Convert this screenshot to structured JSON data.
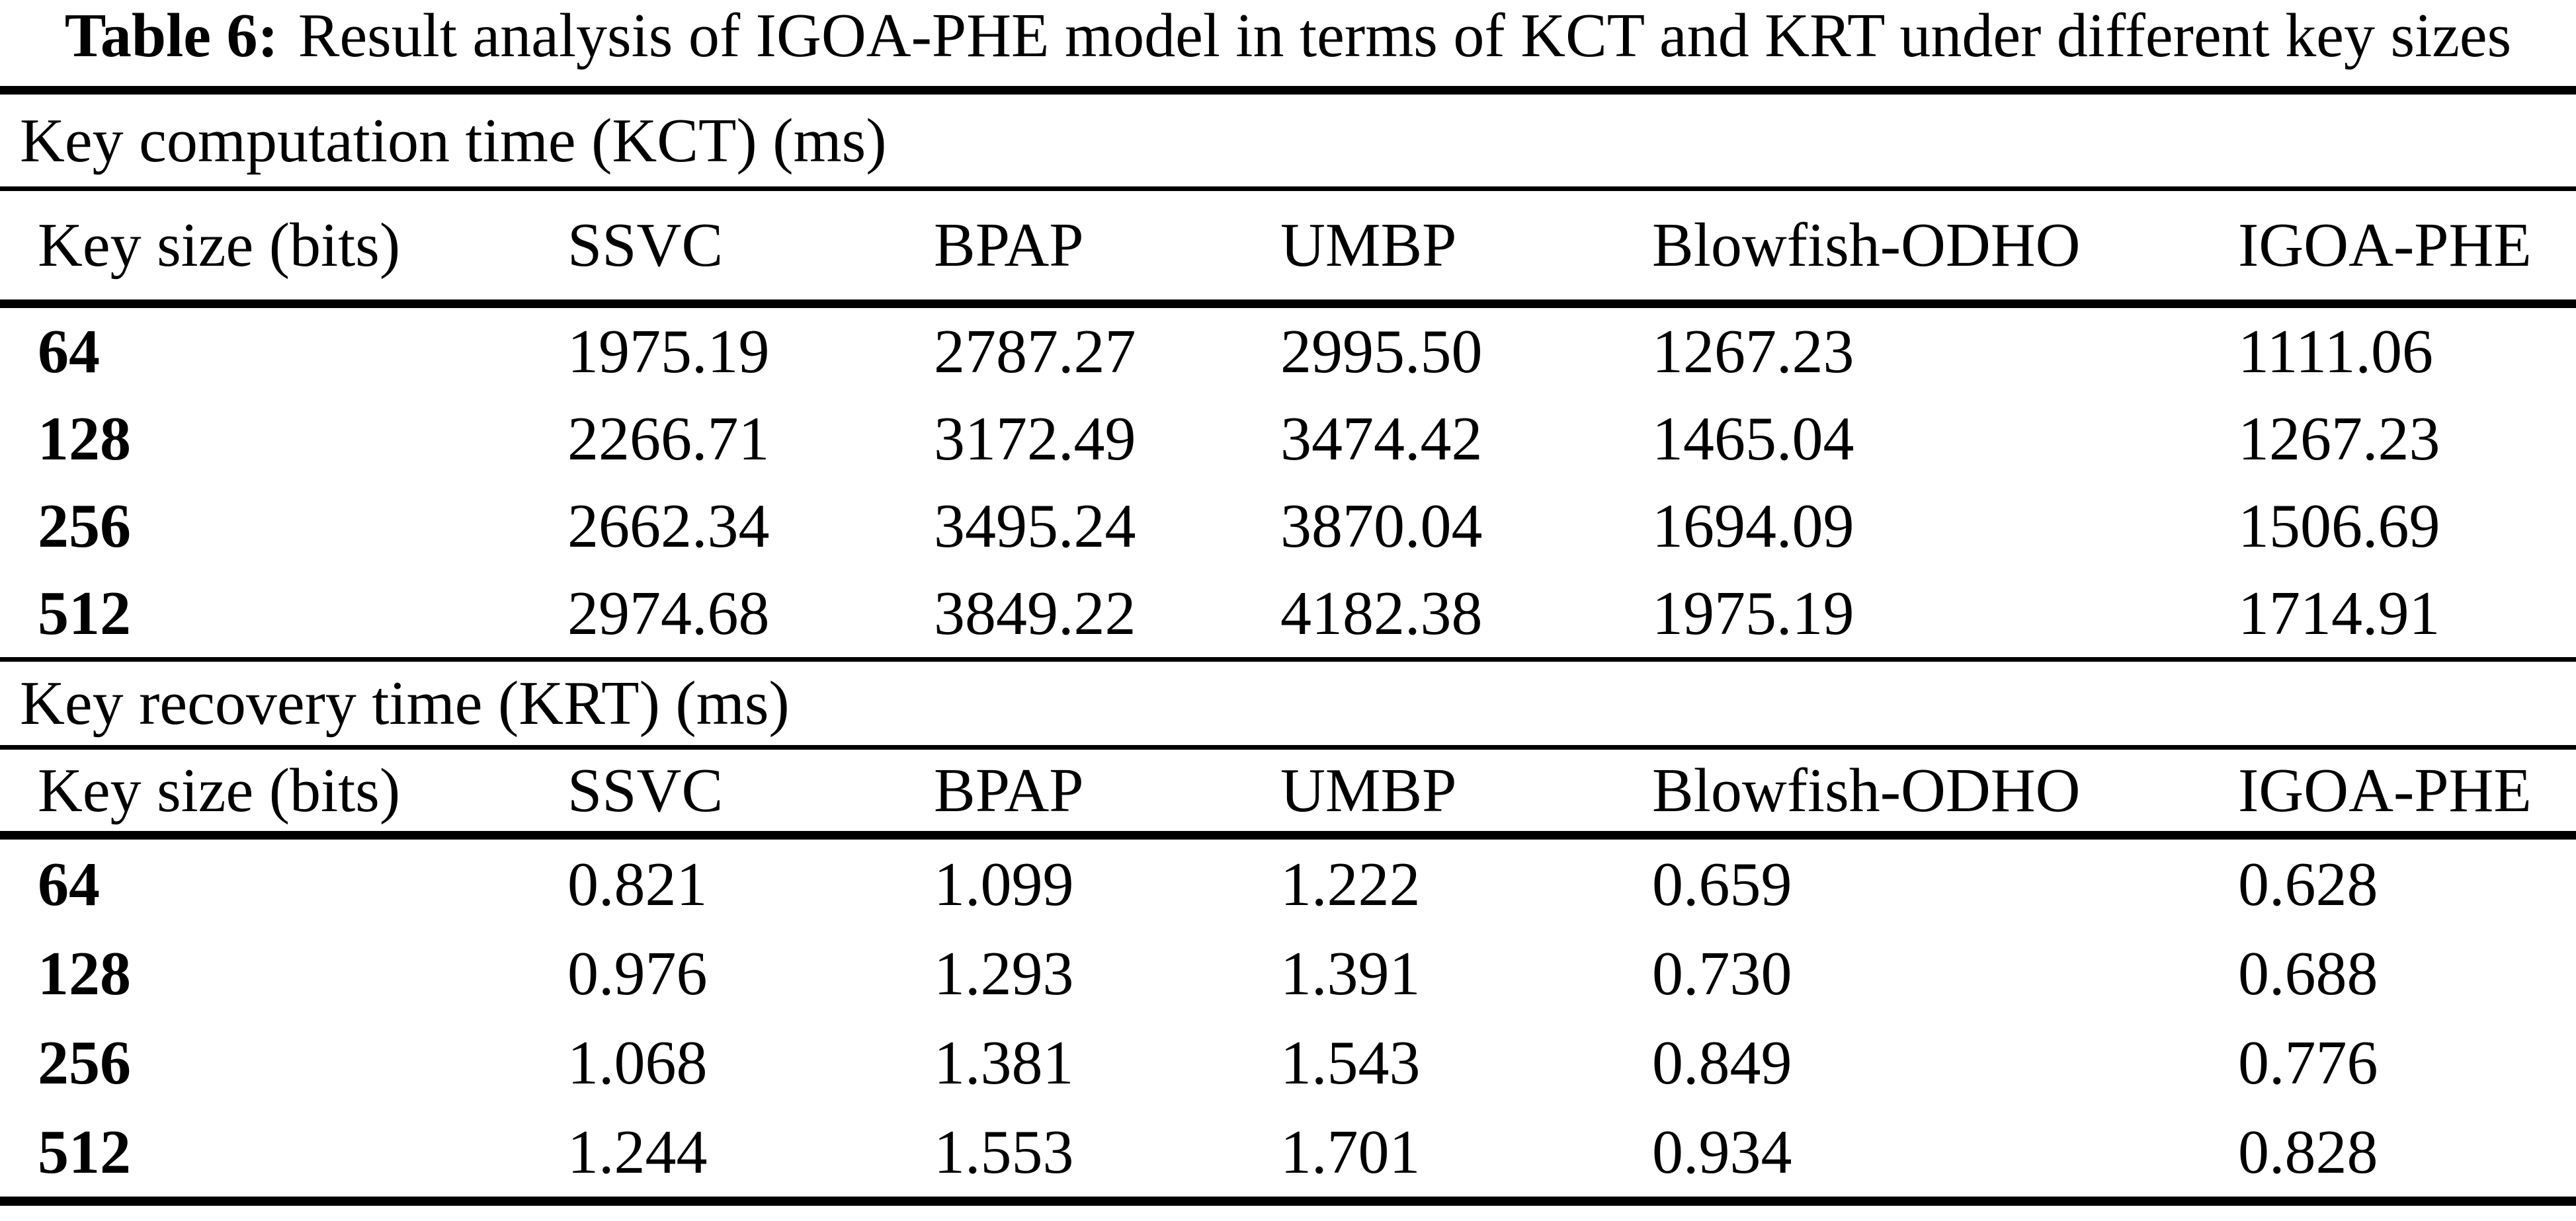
{
  "title": {
    "label": "Table 6:",
    "text": "Result analysis of IGOA-PHE model in terms of KCT and KRT under different key sizes"
  },
  "colors": {
    "text": "#000000",
    "background": "#ffffff"
  },
  "table": {
    "columns": [
      "Key size (bits)",
      "SSVC",
      "BPAP",
      "UMBP",
      "Blowfish-ODHO",
      "IGOA-PHE"
    ],
    "sections": [
      {
        "label": "Key computation time (KCT) (ms)",
        "rows": [
          {
            "key_size": "64",
            "values": [
              "1975.19",
              "2787.27",
              "2995.50",
              "1267.23",
              "1111.06"
            ]
          },
          {
            "key_size": "128",
            "values": [
              "2266.71",
              "3172.49",
              "3474.42",
              "1465.04",
              "1267.23"
            ]
          },
          {
            "key_size": "256",
            "values": [
              "2662.34",
              "3495.24",
              "3870.04",
              "1694.09",
              "1506.69"
            ]
          },
          {
            "key_size": "512",
            "values": [
              "2974.68",
              "3849.22",
              "4182.38",
              "1975.19",
              "1714.91"
            ]
          }
        ]
      },
      {
        "label": "Key recovery time (KRT) (ms)",
        "rows": [
          {
            "key_size": "64",
            "values": [
              "0.821",
              "1.099",
              "1.222",
              "0.659",
              "0.628"
            ]
          },
          {
            "key_size": "128",
            "values": [
              "0.976",
              "1.293",
              "1.391",
              "0.730",
              "0.688"
            ]
          },
          {
            "key_size": "256",
            "values": [
              "1.068",
              "1.381",
              "1.543",
              "0.849",
              "0.776"
            ]
          },
          {
            "key_size": "512",
            "values": [
              "1.244",
              "1.553",
              "1.701",
              "0.934",
              "0.828"
            ]
          }
        ]
      }
    ]
  }
}
